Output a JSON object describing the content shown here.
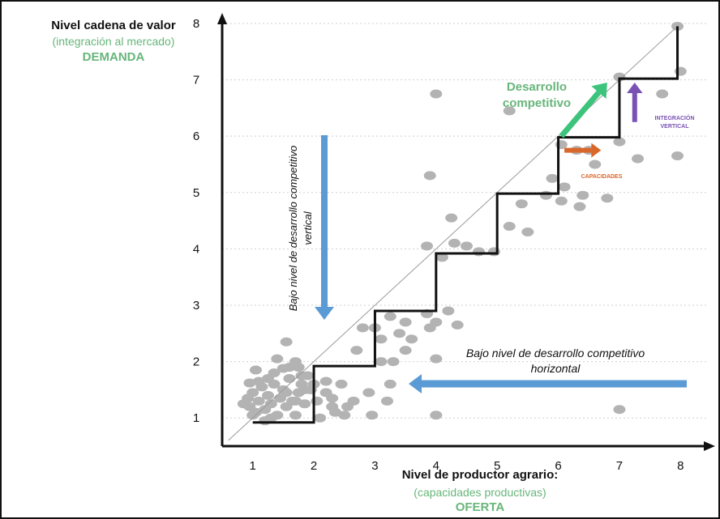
{
  "chart_data": {
    "type": "scatter",
    "xlabel": {
      "line1": "Nivel de productor agrario:",
      "line2": "(capacidades productivas)",
      "line3": "OFERTA"
    },
    "ylabel": {
      "line1": "Nivel cadena de valor",
      "line2": "(integración al mercado)",
      "line3": "DEMANDA"
    },
    "xlim": [
      0.5,
      8.5
    ],
    "ylim": [
      0.5,
      8.1
    ],
    "xticks": [
      "1",
      "2",
      "3",
      "4",
      "5",
      "6",
      "7",
      "8"
    ],
    "yticks": [
      "1",
      "2",
      "3",
      "4",
      "5",
      "6",
      "7",
      "8"
    ],
    "grid": true,
    "colors": {
      "points": "#b3b3b3",
      "steps": "#111111",
      "diagonal": "#9a9a9a",
      "blue": "#5b9bd5",
      "green": "#3cc47c",
      "orange": "#d9662b",
      "purple": "#7a52b3",
      "annotation_green": "#67b67a"
    },
    "staircase": [
      [
        1,
        0.92
      ],
      [
        2,
        0.92
      ],
      [
        2,
        1.92
      ],
      [
        3,
        1.92
      ],
      [
        3,
        2.9
      ],
      [
        4,
        2.9
      ],
      [
        4,
        3.92
      ],
      [
        5,
        3.92
      ],
      [
        5,
        4.98
      ],
      [
        6,
        4.98
      ],
      [
        6,
        5.98
      ],
      [
        7,
        5.98
      ],
      [
        7,
        7.02
      ],
      [
        7.95,
        7.02
      ],
      [
        7.95,
        7.95
      ]
    ],
    "diagonal": [
      [
        0.6,
        0.6
      ],
      [
        7.95,
        7.95
      ]
    ],
    "points": [
      [
        0.85,
        1.25
      ],
      [
        0.92,
        1.35
      ],
      [
        0.95,
        1.2
      ],
      [
        1.0,
        1.45
      ],
      [
        1.05,
        1.1
      ],
      [
        1.1,
        1.3
      ],
      [
        1.15,
        1.55
      ],
      [
        1.2,
        1.15
      ],
      [
        1.25,
        1.4
      ],
      [
        1.3,
        1.25
      ],
      [
        1.35,
        1.6
      ],
      [
        1.4,
        1.05
      ],
      [
        1.45,
        1.35
      ],
      [
        1.5,
        1.5
      ],
      [
        1.55,
        1.2
      ],
      [
        1.6,
        1.7
      ],
      [
        1.65,
        1.3
      ],
      [
        1.7,
        1.05
      ],
      [
        1.75,
        1.45
      ],
      [
        1.8,
        1.6
      ],
      [
        1.85,
        1.25
      ],
      [
        1.9,
        1.75
      ],
      [
        1.05,
        1.85
      ],
      [
        1.25,
        1.7
      ],
      [
        0.95,
        1.62
      ],
      [
        1.6,
        1.9
      ],
      [
        1.35,
        1.8
      ],
      [
        1.75,
        1.9
      ],
      [
        1.55,
        1.45
      ],
      [
        1.95,
        1.5
      ],
      [
        1.3,
        1.0
      ],
      [
        1.1,
        1.65
      ],
      [
        1.5,
        1.88
      ],
      [
        1.7,
        1.3
      ],
      [
        1.85,
        1.5
      ],
      [
        1.4,
        2.05
      ],
      [
        1.0,
        1.05
      ],
      [
        1.2,
        0.95
      ],
      [
        1.7,
        2.0
      ],
      [
        1.8,
        1.75
      ],
      [
        1.55,
        2.35
      ],
      [
        2.0,
        1.6
      ],
      [
        2.2,
        1.65
      ],
      [
        2.05,
        1.3
      ],
      [
        2.3,
        1.2
      ],
      [
        2.35,
        1.1
      ],
      [
        2.5,
        1.05
      ],
      [
        2.2,
        1.45
      ],
      [
        2.1,
        1.0
      ],
      [
        2.3,
        1.35
      ],
      [
        2.55,
        1.2
      ],
      [
        2.65,
        1.3
      ],
      [
        2.45,
        1.6
      ],
      [
        2.9,
        1.45
      ],
      [
        2.7,
        2.2
      ],
      [
        2.8,
        2.6
      ],
      [
        3.0,
        2.6
      ],
      [
        3.1,
        2.4
      ],
      [
        3.25,
        2.8
      ],
      [
        3.4,
        2.5
      ],
      [
        3.5,
        2.2
      ],
      [
        3.6,
        2.4
      ],
      [
        3.5,
        2.7
      ],
      [
        3.85,
        2.85
      ],
      [
        3.9,
        2.6
      ],
      [
        4.0,
        2.7
      ],
      [
        4.2,
        2.9
      ],
      [
        4.35,
        2.65
      ],
      [
        3.3,
        2.0
      ],
      [
        3.25,
        1.6
      ],
      [
        3.2,
        1.3
      ],
      [
        3.1,
        2.0
      ],
      [
        2.95,
        1.05
      ],
      [
        3.85,
        4.05
      ],
      [
        3.9,
        5.3
      ],
      [
        4.0,
        6.75
      ],
      [
        4.1,
        3.85
      ],
      [
        4.25,
        4.55
      ],
      [
        4.3,
        4.1
      ],
      [
        4.5,
        4.05
      ],
      [
        4.7,
        3.95
      ],
      [
        4.95,
        3.95
      ],
      [
        5.2,
        4.4
      ],
      [
        5.4,
        4.8
      ],
      [
        5.2,
        6.45
      ],
      [
        5.5,
        4.3
      ],
      [
        5.8,
        4.95
      ],
      [
        5.9,
        5.25
      ],
      [
        6.05,
        4.85
      ],
      [
        6.1,
        5.1
      ],
      [
        6.05,
        5.85
      ],
      [
        6.3,
        5.75
      ],
      [
        6.5,
        5.75
      ],
      [
        6.4,
        4.95
      ],
      [
        6.35,
        4.75
      ],
      [
        6.6,
        5.5
      ],
      [
        6.8,
        4.9
      ],
      [
        7.0,
        5.9
      ],
      [
        7.0,
        7.05
      ],
      [
        7.3,
        5.6
      ],
      [
        7.7,
        6.75
      ],
      [
        7.95,
        7.95
      ],
      [
        8.0,
        7.15
      ],
      [
        7.95,
        5.65
      ],
      [
        7.0,
        1.15
      ],
      [
        4.0,
        1.05
      ],
      [
        4.0,
        2.05
      ]
    ],
    "annotations": {
      "desarrollo": [
        "Desarrollo",
        "competitivo"
      ],
      "vertical_band": [
        "Bajo nivel de desarrollo competitivo",
        "vertical"
      ],
      "horizontal_band": [
        "Bajo nivel de desarrollo competitivo",
        "horizontal"
      ],
      "capacidades": "CAPACIDADES",
      "integracion": [
        "INTEGRACIÓN",
        "VERTICAL"
      ]
    }
  }
}
